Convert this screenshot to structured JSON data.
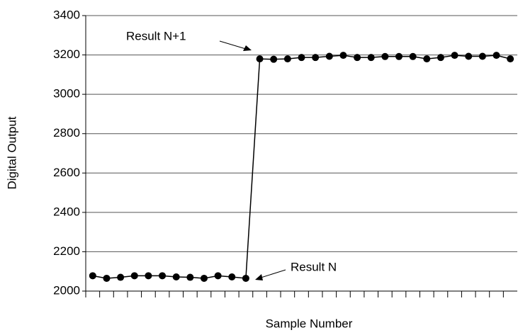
{
  "chart_data": {
    "type": "line",
    "x_label": "Sample Number",
    "y_label": "Digital Output",
    "categories": [
      null,
      null,
      null,
      null,
      null,
      null,
      null,
      null,
      null,
      null,
      null,
      null,
      null,
      null,
      null,
      null,
      null,
      null,
      null,
      null,
      null,
      null,
      null,
      null,
      null,
      null,
      null,
      null,
      null,
      null,
      null
    ],
    "series": [
      {
        "name": "Digital Output",
        "color": "#000000",
        "values": [
          2078,
          2065,
          2070,
          2078,
          2078,
          2078,
          2072,
          2070,
          2065,
          2078,
          2072,
          2065,
          3180,
          3178,
          3180,
          3187,
          3187,
          3193,
          3198,
          3187,
          3187,
          3192,
          3192,
          3192,
          3180,
          3187,
          3198,
          3193,
          3193,
          3198,
          3180
        ]
      }
    ],
    "ylim": [
      2000,
      3400
    ],
    "yticks": [
      2000,
      2200,
      2400,
      2600,
      2800,
      3000,
      3200,
      3400
    ],
    "grid": true,
    "annotations": [
      "Result N+1",
      "Result N"
    ]
  }
}
